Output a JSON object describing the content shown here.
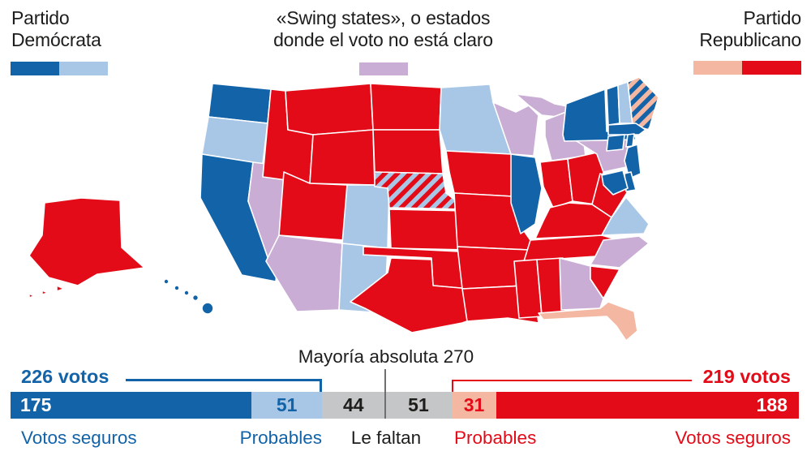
{
  "colors": {
    "dem_solid": "#1263a8",
    "dem_lean": "#a8c7e6",
    "swing": "#c9add4",
    "rep_lean": "#f4b7a2",
    "rep_solid": "#e30b17",
    "undecided": "#c5c6c7",
    "text_dark": "#1d1d1b",
    "divider_gray": "#6f6f70"
  },
  "legend": {
    "democrat": {
      "line1": "Partido",
      "line2": "Demócrata"
    },
    "swing": {
      "line1": "«Swing states», o estados",
      "line2": "donde el voto no está claro"
    },
    "republican": {
      "line1": "Partido",
      "line2": "Republicano"
    }
  },
  "chart_data": [
    {
      "type": "heatmap",
      "subtype": "choropleth-us-states",
      "classes": [
        {
          "key": "dem_solid",
          "color": "#1263a8"
        },
        {
          "key": "dem_lean",
          "color": "#a8c7e6"
        },
        {
          "key": "swing",
          "color": "#c9add4"
        },
        {
          "key": "rep_lean",
          "color": "#f4b7a2"
        },
        {
          "key": "rep_solid",
          "color": "#e30b17"
        },
        {
          "key": "split_ne",
          "color": "hatch red/light-blue"
        },
        {
          "key": "split_me",
          "color": "hatch dark-blue/salmon"
        }
      ],
      "states": [
        {
          "id": "WA",
          "name": "Washington",
          "status": "dem_solid"
        },
        {
          "id": "OR",
          "name": "Oregon",
          "status": "dem_lean"
        },
        {
          "id": "CA",
          "name": "California",
          "status": "dem_solid"
        },
        {
          "id": "NV",
          "name": "Nevada",
          "status": "swing"
        },
        {
          "id": "ID",
          "name": "Idaho",
          "status": "rep_solid"
        },
        {
          "id": "MT",
          "name": "Montana",
          "status": "rep_solid"
        },
        {
          "id": "WY",
          "name": "Wyoming",
          "status": "rep_solid"
        },
        {
          "id": "UT",
          "name": "Utah",
          "status": "rep_solid"
        },
        {
          "id": "CO",
          "name": "Colorado",
          "status": "dem_lean"
        },
        {
          "id": "AZ",
          "name": "Arizona",
          "status": "swing"
        },
        {
          "id": "NM",
          "name": "Nuevo México",
          "status": "dem_lean"
        },
        {
          "id": "ND",
          "name": "Dakota del Norte",
          "status": "rep_solid"
        },
        {
          "id": "SD",
          "name": "Dakota del Sur",
          "status": "rep_solid"
        },
        {
          "id": "NE",
          "name": "Nebraska",
          "status": "split_ne"
        },
        {
          "id": "KS",
          "name": "Kansas",
          "status": "rep_solid"
        },
        {
          "id": "OK",
          "name": "Oklahoma",
          "status": "rep_solid"
        },
        {
          "id": "TX",
          "name": "Texas",
          "status": "rep_solid"
        },
        {
          "id": "MN",
          "name": "Minnesota",
          "status": "dem_lean"
        },
        {
          "id": "IA",
          "name": "Iowa",
          "status": "rep_solid"
        },
        {
          "id": "MO",
          "name": "Misuri",
          "status": "rep_solid"
        },
        {
          "id": "AR",
          "name": "Arkansas",
          "status": "rep_solid"
        },
        {
          "id": "LA",
          "name": "Luisiana",
          "status": "rep_solid"
        },
        {
          "id": "WI",
          "name": "Wisconsin",
          "status": "swing"
        },
        {
          "id": "MI",
          "name": "Míchigan",
          "status": "swing"
        },
        {
          "id": "IL",
          "name": "Illinois",
          "status": "dem_solid"
        },
        {
          "id": "IN",
          "name": "Indiana",
          "status": "rep_solid"
        },
        {
          "id": "OH",
          "name": "Ohio",
          "status": "rep_solid"
        },
        {
          "id": "PA",
          "name": "Pensilvania",
          "status": "swing"
        },
        {
          "id": "WV",
          "name": "Virginia Occidental",
          "status": "rep_solid"
        },
        {
          "id": "KY",
          "name": "Kentucky",
          "status": "rep_solid"
        },
        {
          "id": "TN",
          "name": "Tennessee",
          "status": "rep_solid"
        },
        {
          "id": "MS",
          "name": "Misisipi",
          "status": "rep_solid"
        },
        {
          "id": "AL",
          "name": "Alabama",
          "status": "rep_solid"
        },
        {
          "id": "GA",
          "name": "Georgia",
          "status": "swing"
        },
        {
          "id": "SC",
          "name": "Carolina del Sur",
          "status": "rep_solid"
        },
        {
          "id": "NC",
          "name": "Carolina del Norte",
          "status": "swing"
        },
        {
          "id": "VA",
          "name": "Virginia",
          "status": "dem_lean"
        },
        {
          "id": "FL",
          "name": "Florida",
          "status": "rep_lean"
        },
        {
          "id": "NY",
          "name": "Nueva York",
          "status": "dem_solid"
        },
        {
          "id": "VT",
          "name": "Vermont",
          "status": "dem_solid"
        },
        {
          "id": "NH",
          "name": "Nuevo Hampshire",
          "status": "dem_lean"
        },
        {
          "id": "ME",
          "name": "Maine",
          "status": "split_me"
        },
        {
          "id": "MA",
          "name": "Massachusetts",
          "status": "dem_solid"
        },
        {
          "id": "CT",
          "name": "Connecticut",
          "status": "dem_solid"
        },
        {
          "id": "RI",
          "name": "Rhode Island",
          "status": "dem_solid"
        },
        {
          "id": "NJ",
          "name": "Nueva Jersey",
          "status": "dem_solid"
        },
        {
          "id": "DE",
          "name": "Delaware",
          "status": "dem_solid"
        },
        {
          "id": "MD",
          "name": "Maryland",
          "status": "dem_solid"
        },
        {
          "id": "AK",
          "name": "Alaska",
          "status": "rep_solid"
        },
        {
          "id": "HI",
          "name": "Hawái",
          "status": "dem_solid"
        }
      ]
    },
    {
      "type": "bar",
      "stacked": true,
      "total": 540,
      "majority_label": "Mayoría absoluta 270",
      "majority_value": 270,
      "left_bracket_label": "226 votos",
      "left_bracket_value": 226,
      "right_bracket_label": "219 votos",
      "right_bracket_value": 219,
      "segments": [
        {
          "id": "dem_safe",
          "label": "Votos seguros",
          "value": 175,
          "color": "#1263a8",
          "text_color": "#ffffff",
          "width_pct": 30.6,
          "align": "left"
        },
        {
          "id": "dem_lean",
          "label": "Probables",
          "value": 51,
          "color": "#a8c7e6",
          "text_color": "#1263a8",
          "width_pct": 8.9,
          "align": "center"
        },
        {
          "id": "missing_dem",
          "label": "Le faltan",
          "value": 44,
          "color": "#c5c6c7",
          "text_color": "#1d1d1b",
          "width_pct": 8.0,
          "align": "center"
        },
        {
          "id": "missing_rep",
          "label": "Le faltan",
          "value": 51,
          "color": "#c5c6c7",
          "text_color": "#1d1d1b",
          "width_pct": 8.5,
          "align": "center"
        },
        {
          "id": "rep_lean",
          "label": "Probables",
          "value": 31,
          "color": "#f4b7a2",
          "text_color": "#e30b17",
          "width_pct": 5.6,
          "align": "center"
        },
        {
          "id": "rep_safe",
          "label": "Votos seguros",
          "value": 188,
          "color": "#e30b17",
          "text_color": "#ffffff",
          "width_pct": 38.4,
          "align": "right"
        }
      ],
      "axis_labels": [
        {
          "text": "Votos seguros",
          "color": "#1263a8"
        },
        {
          "text": "Probables",
          "color": "#1263a8"
        },
        {
          "text": "Le faltan",
          "color": "#1d1d1b"
        },
        {
          "text": "Probables",
          "color": "#e30b17"
        },
        {
          "text": "Votos seguros",
          "color": "#e30b17"
        }
      ]
    }
  ]
}
